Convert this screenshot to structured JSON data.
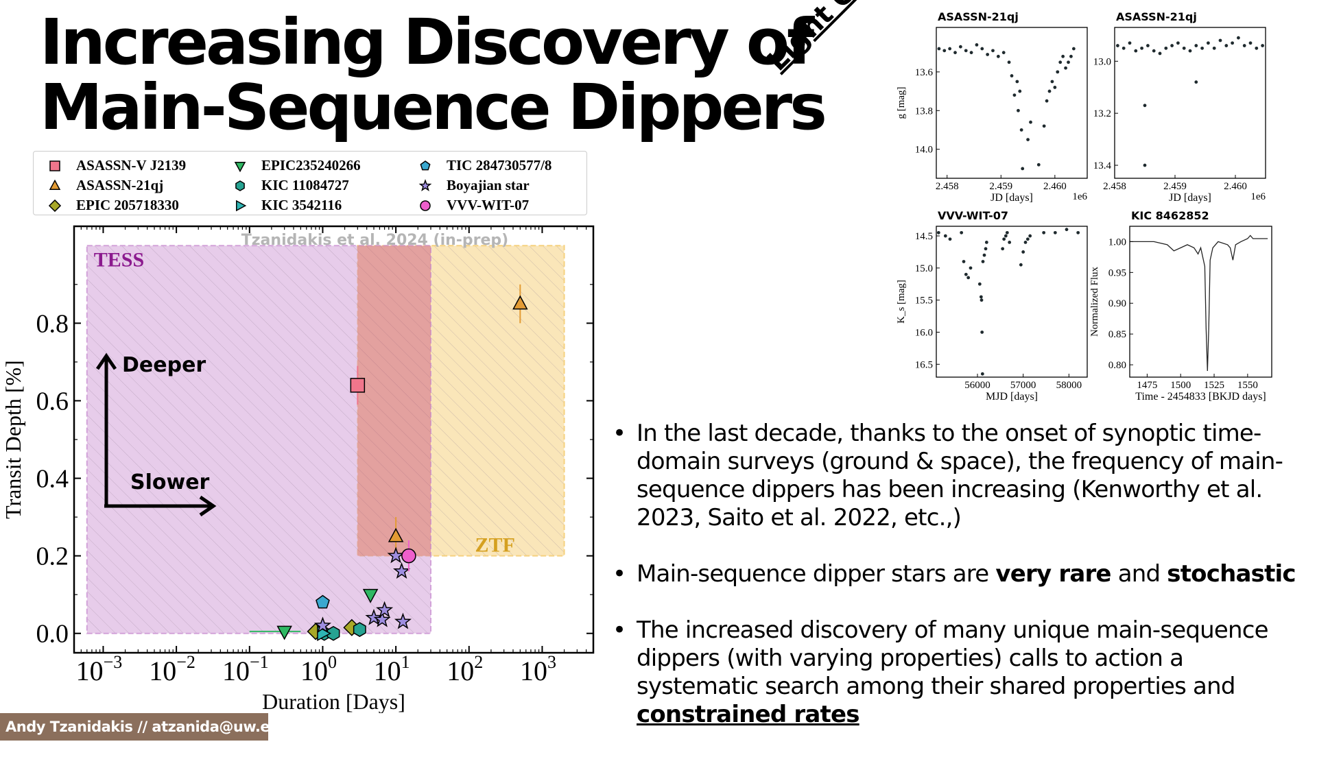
{
  "title": {
    "line1": "Increasing Discovery of",
    "line2": "Main-Sequence Dippers"
  },
  "legend": [
    {
      "label": "ASASSN-V J2139",
      "marker": "square",
      "color": "#f0768c"
    },
    {
      "label": "ASASSN-21qj",
      "marker": "triangle-up",
      "color": "#e39b34"
    },
    {
      "label": "EPIC 205718330",
      "marker": "diamond",
      "color": "#a8a828"
    },
    {
      "label": "EPIC235240266",
      "marker": "triangle-down",
      "color": "#2fb863"
    },
    {
      "label": "KIC 11084727",
      "marker": "hexagon",
      "color": "#26a392"
    },
    {
      "label": "KIC 3542116",
      "marker": "triangle-right",
      "color": "#2eb5b4"
    },
    {
      "label": "TIC 284730577/8",
      "marker": "pentagon",
      "color": "#3aa8cf"
    },
    {
      "label": "Boyajian star",
      "marker": "star",
      "color": "#9f8ee0"
    },
    {
      "label": "VVV-WIT-07",
      "marker": "circle",
      "color": "#ee5fcc"
    }
  ],
  "chart_data": [
    {
      "type": "scatter",
      "title": "",
      "watermark": "Tzanidakis et al. 2024 (in-prep)",
      "xlabel": "Duration [Days]",
      "ylabel": "Transit Depth [%]",
      "xscale": "log",
      "xlim": [
        0.0004,
        5000
      ],
      "ylim": [
        -0.05,
        1.05
      ],
      "xticks": [
        {
          "v": 0.001,
          "base": "10",
          "exp": "−3"
        },
        {
          "v": 0.01,
          "base": "10",
          "exp": "−2"
        },
        {
          "v": 0.1,
          "base": "10",
          "exp": "−1"
        },
        {
          "v": 1,
          "base": "10",
          "exp": "0"
        },
        {
          "v": 10,
          "base": "10",
          "exp": "1"
        },
        {
          "v": 100,
          "base": "10",
          "exp": "2"
        },
        {
          "v": 1000,
          "base": "10",
          "exp": "3"
        }
      ],
      "yticks": [
        {
          "v": 0.0,
          "label": "0.0"
        },
        {
          "v": 0.2,
          "label": "0.2"
        },
        {
          "v": 0.4,
          "label": "0.4"
        },
        {
          "v": 0.6,
          "label": "0.6"
        },
        {
          "v": 0.8,
          "label": "0.8"
        }
      ],
      "regions": [
        {
          "name": "TESS",
          "x": [
            0.0006,
            30
          ],
          "y": [
            0.0,
            1.0
          ],
          "color": "#d2a2d9",
          "label_color": "#8b1a8e",
          "label_pos": "top-left"
        },
        {
          "name": "ZTF",
          "x": [
            3,
            2000
          ],
          "y": [
            0.2,
            1.0
          ],
          "color": "#f5d17f",
          "label_color": "#d5a020",
          "label_pos": "bottom-right"
        }
      ],
      "annotations": {
        "deeper": "Deeper",
        "slower": "Slower"
      },
      "series": [
        {
          "name": "ASASSN-V J2139",
          "marker": "square",
          "color": "#f0768c",
          "points": [
            {
              "x": 3,
              "y": 0.64,
              "yerr": 0.05
            }
          ]
        },
        {
          "name": "ASASSN-21qj",
          "marker": "triangle-up",
          "color": "#e39b34",
          "points": [
            {
              "x": 10,
              "y": 0.25,
              "yerr": 0.05
            },
            {
              "x": 500,
              "y": 0.85,
              "yerr": 0.05
            }
          ]
        },
        {
          "name": "EPIC 205718330",
          "marker": "diamond",
          "color": "#a8a828",
          "points": [
            {
              "x": 0.8,
              "y": 0.005
            },
            {
              "x": 2.5,
              "y": 0.015
            }
          ]
        },
        {
          "name": "EPIC235240266",
          "marker": "triangle-down",
          "color": "#2fb863",
          "points": [
            {
              "x": 0.3,
              "y": 0.005,
              "xerr": [
                0.1,
                0.5
              ]
            },
            {
              "x": 4.5,
              "y": 0.1
            }
          ]
        },
        {
          "name": "KIC 11084727",
          "marker": "hexagon",
          "color": "#26a392",
          "points": [
            {
              "x": 1.05,
              "y": 0.0
            },
            {
              "x": 1.4,
              "y": 0.0
            },
            {
              "x": 3.2,
              "y": 0.01
            }
          ]
        },
        {
          "name": "KIC 3542116",
          "marker": "triangle-right",
          "color": "#2eb5b4",
          "points": [
            {
              "x": 1.0,
              "y": 0.0
            }
          ]
        },
        {
          "name": "TIC 284730577/8",
          "marker": "pentagon",
          "color": "#3aa8cf",
          "points": [
            {
              "x": 1.0,
              "y": 0.08
            }
          ]
        },
        {
          "name": "Boyajian star",
          "marker": "star",
          "color": "#9f8ee0",
          "points": [
            {
              "x": 1.0,
              "y": 0.02
            },
            {
              "x": 5.0,
              "y": 0.04
            },
            {
              "x": 6.5,
              "y": 0.035
            },
            {
              "x": 7.0,
              "y": 0.06
            },
            {
              "x": 10.0,
              "y": 0.2
            },
            {
              "x": 12.0,
              "y": 0.16
            },
            {
              "x": 12.5,
              "y": 0.03
            }
          ]
        },
        {
          "name": "VVV-WIT-07",
          "marker": "circle",
          "color": "#ee5fcc",
          "points": [
            {
              "x": 15,
              "y": 0.2,
              "yerr": 0.04
            }
          ]
        }
      ]
    },
    {
      "type": "scatter",
      "title": "ASASSN-21qj",
      "xlabel": "JD [days]",
      "ylabel": "g [mag]",
      "xlim": [
        2457800,
        2460600
      ],
      "ylim": [
        14.15,
        13.37
      ],
      "y_inverted": true,
      "x_offset_label": "1e6",
      "xticks": [
        {
          "v": 2458000,
          "label": "2.458"
        },
        {
          "v": 2459000,
          "label": "2.459"
        },
        {
          "v": 2460000,
          "label": "2.460"
        }
      ],
      "yticks": [
        {
          "v": 13.6,
          "label": "13.6"
        },
        {
          "v": 13.8,
          "label": "13.8"
        },
        {
          "v": 14.0,
          "label": "14.0"
        }
      ],
      "description": "Mostly flat near g≈13.5 until ~2.4594e6, then dipping episodes down to ~14.1 with recovery",
      "series": [
        {
          "name": "light curve",
          "points": [
            [
              2457850,
              13.48
            ],
            [
              2457950,
              13.49
            ],
            [
              2458050,
              13.48
            ],
            [
              2458150,
              13.5
            ],
            [
              2458250,
              13.47
            ],
            [
              2458350,
              13.49
            ],
            [
              2458450,
              13.5
            ],
            [
              2458550,
              13.46
            ],
            [
              2458650,
              13.48
            ],
            [
              2458750,
              13.51
            ],
            [
              2458850,
              13.49
            ],
            [
              2458950,
              13.52
            ],
            [
              2459050,
              13.5
            ],
            [
              2459150,
              13.55
            ],
            [
              2459200,
              13.62
            ],
            [
              2459250,
              13.72
            ],
            [
              2459300,
              13.65
            ],
            [
              2459320,
              13.8
            ],
            [
              2459350,
              13.7
            ],
            [
              2459380,
              13.9
            ],
            [
              2459400,
              14.1
            ],
            [
              2459500,
              13.95
            ],
            [
              2459550,
              13.86
            ],
            [
              2459700,
              14.08
            ],
            [
              2459800,
              13.88
            ],
            [
              2459850,
              13.75
            ],
            [
              2459900,
              13.7
            ],
            [
              2459950,
              13.65
            ],
            [
              2460000,
              13.68
            ],
            [
              2460050,
              13.6
            ],
            [
              2460100,
              13.55
            ],
            [
              2460150,
              13.52
            ],
            [
              2460200,
              13.58
            ],
            [
              2460250,
              13.55
            ],
            [
              2460300,
              13.52
            ],
            [
              2460350,
              13.48
            ]
          ]
        }
      ]
    },
    {
      "type": "scatter",
      "title": "ASASSN-21qj",
      "xlabel": "JD [days]",
      "ylabel": "",
      "xlim": [
        2458000,
        2460500
      ],
      "ylim": [
        13.45,
        12.87
      ],
      "y_inverted": true,
      "x_offset_label": "1e6",
      "xticks": [
        {
          "v": 2458000,
          "label": "2.458"
        },
        {
          "v": 2459000,
          "label": "2.459"
        },
        {
          "v": 2460000,
          "label": "2.460"
        }
      ],
      "yticks": [
        {
          "v": 13.0,
          "label": "13.0"
        },
        {
          "v": 13.2,
          "label": "13.2"
        },
        {
          "v": 13.4,
          "label": "13.4"
        }
      ],
      "series": [
        {
          "name": "light curve",
          "points": [
            [
              2458050,
              12.94
            ],
            [
              2458150,
              12.95
            ],
            [
              2458250,
              12.93
            ],
            [
              2458350,
              12.96
            ],
            [
              2458450,
              12.95
            ],
            [
              2458550,
              12.94
            ],
            [
              2458650,
              12.96
            ],
            [
              2458750,
              12.97
            ],
            [
              2458850,
              12.95
            ],
            [
              2458950,
              12.94
            ],
            [
              2459050,
              12.93
            ],
            [
              2459150,
              12.95
            ],
            [
              2459250,
              12.96
            ],
            [
              2459350,
              12.94
            ],
            [
              2459450,
              12.95
            ],
            [
              2459550,
              12.93
            ],
            [
              2459650,
              12.95
            ],
            [
              2459750,
              12.92
            ],
            [
              2459850,
              12.94
            ],
            [
              2459950,
              12.93
            ],
            [
              2460050,
              12.91
            ],
            [
              2460150,
              12.94
            ],
            [
              2460250,
              12.93
            ],
            [
              2460350,
              12.95
            ],
            [
              2460450,
              12.94
            ],
            [
              2458500,
              13.17
            ],
            [
              2458500,
              13.4
            ],
            [
              2459350,
              13.08
            ]
          ]
        }
      ]
    },
    {
      "type": "scatter",
      "title": "VVV-WIT-07",
      "xlabel": "MJD [days]",
      "ylabel": "K_s [mag]",
      "xlim": [
        55100,
        58400
      ],
      "ylim": [
        16.7,
        14.35
      ],
      "y_inverted": true,
      "xticks": [
        {
          "v": 56000,
          "label": "56000"
        },
        {
          "v": 57000,
          "label": "57000"
        },
        {
          "v": 58000,
          "label": "58000"
        }
      ],
      "yticks": [
        {
          "v": 14.5,
          "label": "14.5"
        },
        {
          "v": 15.0,
          "label": "15.0"
        },
        {
          "v": 15.5,
          "label": "15.5"
        },
        {
          "v": 16.0,
          "label": "16.0"
        },
        {
          "v": 16.5,
          "label": "16.5"
        }
      ],
      "series": [
        {
          "name": "light curve",
          "points": [
            [
              55150,
              14.45
            ],
            [
              55300,
              14.5
            ],
            [
              55400,
              14.55
            ],
            [
              55650,
              14.45
            ],
            [
              55700,
              14.9
            ],
            [
              55750,
              15.1
            ],
            [
              55800,
              15.15
            ],
            [
              55850,
              15.0
            ],
            [
              56050,
              15.25
            ],
            [
              56080,
              15.45
            ],
            [
              56090,
              15.5
            ],
            [
              56100,
              16.0
            ],
            [
              56110,
              16.65
            ],
            [
              56120,
              14.9
            ],
            [
              56150,
              14.8
            ],
            [
              56180,
              14.7
            ],
            [
              56200,
              14.6
            ],
            [
              56550,
              14.7
            ],
            [
              56580,
              14.55
            ],
            [
              56620,
              14.5
            ],
            [
              56650,
              14.45
            ],
            [
              56700,
              14.6
            ],
            [
              56950,
              14.95
            ],
            [
              57000,
              14.75
            ],
            [
              57050,
              14.6
            ],
            [
              57100,
              14.55
            ],
            [
              57150,
              14.5
            ],
            [
              57450,
              14.45
            ],
            [
              57700,
              14.45
            ],
            [
              57950,
              14.4
            ],
            [
              58200,
              14.45
            ]
          ]
        }
      ]
    },
    {
      "type": "line",
      "title": "KIC 8462852",
      "xlabel": "Time - 2454833 [BKJD days]",
      "ylabel": "Normalized Flux",
      "xlim": [
        1462,
        1568
      ],
      "ylim": [
        0.78,
        1.025
      ],
      "xticks": [
        {
          "v": 1475,
          "label": "1475"
        },
        {
          "v": 1500,
          "label": "1500"
        },
        {
          "v": 1525,
          "label": "1525"
        },
        {
          "v": 1550,
          "label": "1550"
        }
      ],
      "yticks": [
        {
          "v": 1.0,
          "label": "1.00"
        },
        {
          "v": 0.95,
          "label": "0.95"
        },
        {
          "v": 0.9,
          "label": "0.90"
        },
        {
          "v": 0.85,
          "label": "0.85"
        },
        {
          "v": 0.8,
          "label": "0.80"
        }
      ],
      "series": [
        {
          "name": "flux",
          "points": [
            [
              1462,
              1.0
            ],
            [
              1480,
              1.0
            ],
            [
              1490,
              0.995
            ],
            [
              1495,
              0.985
            ],
            [
              1500,
              0.99
            ],
            [
              1505,
              0.995
            ],
            [
              1510,
              0.99
            ],
            [
              1513,
              0.98
            ],
            [
              1515,
              0.99
            ],
            [
              1518,
              0.96
            ],
            [
              1519,
              0.86
            ],
            [
              1520,
              0.79
            ],
            [
              1521,
              0.86
            ],
            [
              1522,
              0.97
            ],
            [
              1524,
              0.99
            ],
            [
              1528,
              1.0
            ],
            [
              1535,
              0.995
            ],
            [
              1537,
              0.99
            ],
            [
              1539,
              0.97
            ],
            [
              1541,
              0.995
            ],
            [
              1545,
              1.0
            ],
            [
              1550,
              1.005
            ],
            [
              1552,
              1.01
            ],
            [
              1554,
              1.005
            ],
            [
              1565,
              1.005
            ]
          ]
        }
      ]
    }
  ],
  "light_curves_tag": "Light Curves",
  "bullets": [
    {
      "segments": [
        {
          "text": "In the last decade, thanks to the onset of synoptic time-domain surveys (ground & space), the frequency of main-sequence dippers has been increasing (Kenworthy et al. 2023, Saito et al. 2022, etc.,)",
          "bold": false
        }
      ]
    },
    {
      "segments": [
        {
          "text": "Main-sequence dipper stars are ",
          "bold": false
        },
        {
          "text": "very rare",
          "bold": true
        },
        {
          "text": " and ",
          "bold": false
        },
        {
          "text": "stochastic",
          "bold": true
        }
      ]
    },
    {
      "segments": [
        {
          "text": "The increased discovery of many unique main-sequence dippers (with varying properties) calls to action a systematic search among their shared properties and ",
          "bold": false
        },
        {
          "text": "constrained rates",
          "bold": true,
          "underline": true
        }
      ]
    }
  ],
  "footer": "Andy Tzanidakis // atzanida@uw.edu"
}
